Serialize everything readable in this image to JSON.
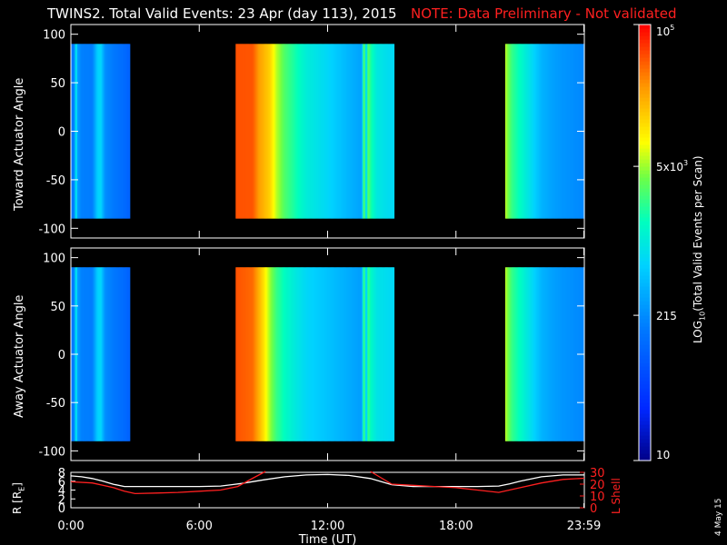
{
  "chart_data": {
    "type": "heatmap",
    "title": "TWINS2. Total Valid Events: 23 Apr (day 113), 2015",
    "note": "NOTE: Data Preliminary - Not validated",
    "date_stamp": "4 May 15",
    "xlabel": "Time (UT)",
    "x_ticks": [
      "0:00",
      "6:00",
      "12:00",
      "18:00",
      "23:59"
    ],
    "x_tick_hours": [
      0,
      6,
      12,
      18,
      23.98
    ],
    "xlim_hours": [
      0,
      24
    ],
    "colorbar": {
      "label": "LOG10(Total Valid Events per Scan)",
      "label_parts": [
        "LOG",
        "10",
        "(Total Valid Events per Scan)"
      ],
      "scale": "log",
      "range": [
        10,
        100000
      ],
      "tick_values": [
        10,
        215,
        5000,
        100000
      ],
      "tick_labels": [
        "10",
        "215",
        "5x10^3",
        "10^5"
      ],
      "tick_label_parts": [
        [
          "10",
          ""
        ],
        [
          "215",
          ""
        ],
        [
          "5x10",
          "3"
        ],
        [
          "10",
          "5"
        ]
      ]
    },
    "panels": [
      {
        "ylabel": "Toward Actuator Angle",
        "ylim": [
          -110,
          110
        ],
        "y_ticks": [
          100,
          50,
          0,
          -50,
          -100
        ],
        "data_y_range": [
          -90,
          90
        ],
        "segments": [
          {
            "start_hour": 0.0,
            "end_hour": 2.75,
            "profile": [
              [
                0.0,
                150
              ],
              [
                0.15,
                160
              ],
              [
                0.25,
                1500
              ],
              [
                0.3,
                300
              ],
              [
                0.5,
                180
              ],
              [
                1.0,
                170
              ],
              [
                1.25,
                600
              ],
              [
                1.4,
                700
              ],
              [
                1.6,
                220
              ],
              [
                2.0,
                160
              ],
              [
                2.5,
                120
              ],
              [
                2.75,
                100
              ]
            ]
          },
          {
            "start_hour": 7.7,
            "end_hour": 15.1,
            "profile": [
              [
                7.7,
                50000
              ],
              [
                8.5,
                48000
              ],
              [
                8.8,
                25000
              ],
              [
                9.0,
                20000
              ],
              [
                9.3,
                14000
              ],
              [
                9.6,
                6000
              ],
              [
                10.0,
                3000
              ],
              [
                10.5,
                1800
              ],
              [
                11.0,
                1100
              ],
              [
                12.0,
                700
              ],
              [
                13.0,
                400
              ],
              [
                13.6,
                300
              ],
              [
                13.7,
                5000
              ],
              [
                13.8,
                500
              ],
              [
                13.9,
                4000
              ],
              [
                14.0,
                2000
              ],
              [
                14.3,
                1000
              ],
              [
                15.1,
                700
              ]
            ]
          },
          {
            "start_hour": 20.3,
            "end_hour": 24.0,
            "profile": [
              [
                20.3,
                6000
              ],
              [
                20.6,
                2500
              ],
              [
                21.0,
                1500
              ],
              [
                21.5,
                800
              ],
              [
                22.0,
                400
              ],
              [
                22.5,
                300
              ],
              [
                23.0,
                250
              ],
              [
                24.0,
                200
              ]
            ]
          }
        ]
      },
      {
        "ylabel": "Away Actuator Angle",
        "ylim": [
          -110,
          110
        ],
        "y_ticks": [
          100,
          50,
          0,
          -50,
          -100
        ],
        "data_y_range": [
          -90,
          90
        ],
        "segments": [
          {
            "start_hour": 0.0,
            "end_hour": 2.75,
            "profile": [
              [
                0.0,
                150
              ],
              [
                0.15,
                160
              ],
              [
                0.25,
                1500
              ],
              [
                0.3,
                300
              ],
              [
                0.5,
                180
              ],
              [
                1.0,
                170
              ],
              [
                1.25,
                600
              ],
              [
                1.4,
                700
              ],
              [
                1.6,
                220
              ],
              [
                2.0,
                160
              ],
              [
                2.5,
                120
              ],
              [
                2.75,
                100
              ]
            ]
          },
          {
            "start_hour": 7.7,
            "end_hour": 15.1,
            "profile": [
              [
                7.7,
                50000
              ],
              [
                8.5,
                40000
              ],
              [
                8.8,
                20000
              ],
              [
                9.0,
                12000
              ],
              [
                9.3,
                5000
              ],
              [
                9.6,
                2500
              ],
              [
                10.0,
                1500
              ],
              [
                10.5,
                1000
              ],
              [
                11.0,
                700
              ],
              [
                12.0,
                500
              ],
              [
                13.0,
                350
              ],
              [
                13.6,
                280
              ],
              [
                13.7,
                4000
              ],
              [
                13.8,
                400
              ],
              [
                13.9,
                3000
              ],
              [
                14.0,
                1500
              ],
              [
                14.3,
                900
              ],
              [
                15.1,
                700
              ]
            ]
          },
          {
            "start_hour": 20.3,
            "end_hour": 24.0,
            "profile": [
              [
                20.3,
                6000
              ],
              [
                20.6,
                2500
              ],
              [
                21.0,
                1500
              ],
              [
                21.5,
                800
              ],
              [
                22.0,
                400
              ],
              [
                22.5,
                300
              ],
              [
                23.0,
                250
              ],
              [
                24.0,
                200
              ]
            ]
          }
        ]
      }
    ],
    "orbit_panel": {
      "ylabel_left": "R [RE]",
      "ylabel_left_parts": [
        "R [R",
        "E",
        "]"
      ],
      "ylim_left": [
        0,
        8
      ],
      "y_ticks_left": [
        0,
        2,
        4,
        6,
        8
      ],
      "ylabel_right": "L Shell",
      "ylim_right": [
        0,
        30
      ],
      "y_ticks_right": [
        0,
        10,
        20,
        30
      ],
      "series": [
        {
          "axis": "left",
          "color": "#ffffff",
          "x": [
            0,
            0.5,
            1,
            1.5,
            2,
            2.5,
            3,
            4,
            5,
            6,
            7,
            8,
            9,
            10,
            11,
            12,
            13,
            14,
            15,
            16,
            17,
            18,
            19,
            20,
            20.5,
            21,
            22,
            23,
            24
          ],
          "y": [
            7.2,
            7.0,
            6.6,
            6.0,
            5.3,
            4.8,
            4.8,
            4.8,
            4.8,
            4.8,
            4.9,
            5.5,
            6.3,
            7.0,
            7.4,
            7.5,
            7.3,
            6.6,
            5.2,
            4.8,
            4.8,
            4.8,
            4.8,
            4.9,
            5.4,
            6.0,
            7.0,
            7.4,
            7.4
          ]
        },
        {
          "axis": "right",
          "color": "#ff2020",
          "x": [
            0,
            1,
            2,
            2.5,
            3,
            4,
            5,
            6,
            7,
            7.8,
            8.5,
            9.1,
            null,
            14.0,
            15.0,
            16,
            17,
            18,
            19,
            20,
            21,
            22,
            23,
            24
          ],
          "y": [
            22,
            21,
            17,
            14,
            12,
            12.5,
            13,
            14,
            15,
            18,
            25,
            31,
            null,
            31,
            20,
            19,
            18,
            17,
            15,
            13,
            17,
            21,
            24,
            25
          ]
        }
      ]
    }
  }
}
